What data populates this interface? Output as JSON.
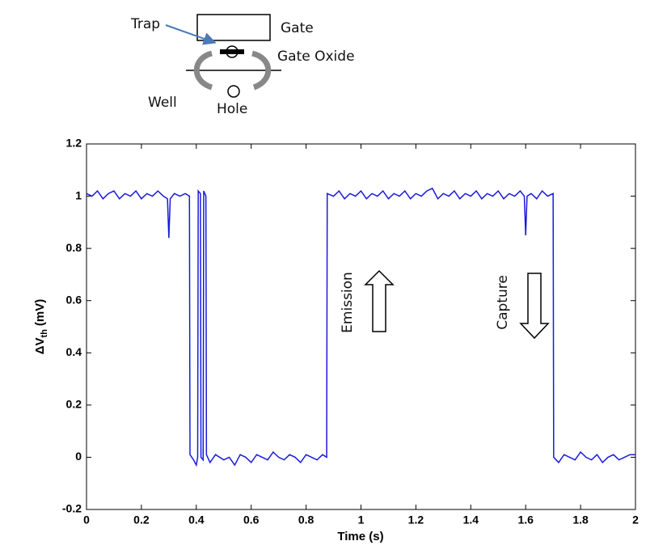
{
  "diagram": {
    "trap": "Trap",
    "gate": "Gate",
    "gate_oxide": "Gate Oxide",
    "well": "Well",
    "hole": "Hole"
  },
  "chart_data": {
    "type": "line",
    "xlabel": "Time (s)",
    "ylabel": [
      "ΔV",
      "th",
      "(mV)"
    ],
    "annotations": [
      "Emission",
      "Capture"
    ],
    "xlim": [
      0,
      2
    ],
    "xticks": [
      0,
      0.2,
      0.4,
      0.6,
      0.8,
      1,
      1.2,
      1.4,
      1.6,
      1.8,
      2
    ],
    "ylim": [
      -0.2,
      1.2
    ],
    "yticks": [
      -0.2,
      0,
      0.2,
      0.4,
      0.6,
      0.8,
      1,
      1.2
    ],
    "x": [
      0,
      0.02,
      0.04,
      0.06,
      0.08,
      0.1,
      0.12,
      0.14,
      0.16,
      0.18,
      0.2,
      0.22,
      0.24,
      0.26,
      0.28,
      0.295,
      0.3,
      0.305,
      0.32,
      0.34,
      0.36,
      0.375,
      0.377,
      0.39,
      0.4,
      0.405,
      0.407,
      0.415,
      0.417,
      0.425,
      0.427,
      0.435,
      0.437,
      0.45,
      0.47,
      0.5,
      0.52,
      0.54,
      0.56,
      0.58,
      0.6,
      0.62,
      0.64,
      0.66,
      0.68,
      0.7,
      0.72,
      0.74,
      0.76,
      0.78,
      0.8,
      0.82,
      0.84,
      0.86,
      0.875,
      0.877,
      0.9,
      0.92,
      0.94,
      0.96,
      0.98,
      1.0,
      1.02,
      1.04,
      1.06,
      1.08,
      1.1,
      1.12,
      1.14,
      1.16,
      1.18,
      1.2,
      1.22,
      1.24,
      1.26,
      1.28,
      1.3,
      1.32,
      1.34,
      1.36,
      1.38,
      1.4,
      1.42,
      1.44,
      1.46,
      1.48,
      1.5,
      1.52,
      1.54,
      1.56,
      1.58,
      1.595,
      1.6,
      1.605,
      1.62,
      1.64,
      1.66,
      1.68,
      1.7,
      1.702,
      1.72,
      1.74,
      1.76,
      1.78,
      1.8,
      1.82,
      1.84,
      1.86,
      1.88,
      1.9,
      1.92,
      1.94,
      1.96,
      1.98,
      2.0
    ],
    "series": [
      {
        "color": "#1a1adc",
        "values": [
          1.01,
          1.0,
          1.02,
          0.99,
          1.01,
          1.02,
          0.99,
          1.01,
          1.0,
          1.02,
          0.99,
          1.01,
          1.0,
          1.02,
          1.0,
          0.99,
          0.84,
          0.99,
          1.01,
          1.0,
          1.01,
          1.0,
          0.01,
          -0.01,
          -0.03,
          0.0,
          1.02,
          1.01,
          0.0,
          -0.01,
          1.02,
          1.0,
          0.01,
          -0.02,
          0.01,
          -0.01,
          0.0,
          -0.03,
          0.01,
          0.0,
          -0.02,
          0.01,
          0.0,
          -0.01,
          0.02,
          0.0,
          -0.01,
          0.01,
          0.0,
          -0.02,
          0.01,
          0.0,
          -0.01,
          0.01,
          0.0,
          1.01,
          1.0,
          1.02,
          0.99,
          1.01,
          1.0,
          1.02,
          0.99,
          1.01,
          1.0,
          1.02,
          0.99,
          1.01,
          1.0,
          1.02,
          0.99,
          1.01,
          1.0,
          1.02,
          1.03,
          0.99,
          1.01,
          1.0,
          1.02,
          0.99,
          1.01,
          1.0,
          1.02,
          0.99,
          1.01,
          1.0,
          1.02,
          0.99,
          1.01,
          1.0,
          1.02,
          1.0,
          0.85,
          1.0,
          1.01,
          0.99,
          1.02,
          1.0,
          1.01,
          0.0,
          -0.02,
          0.01,
          0.0,
          -0.01,
          0.02,
          0.0,
          -0.01,
          0.01,
          -0.02,
          0.0,
          0.01,
          -0.01,
          0.0,
          0.01,
          0.01
        ]
      }
    ]
  }
}
